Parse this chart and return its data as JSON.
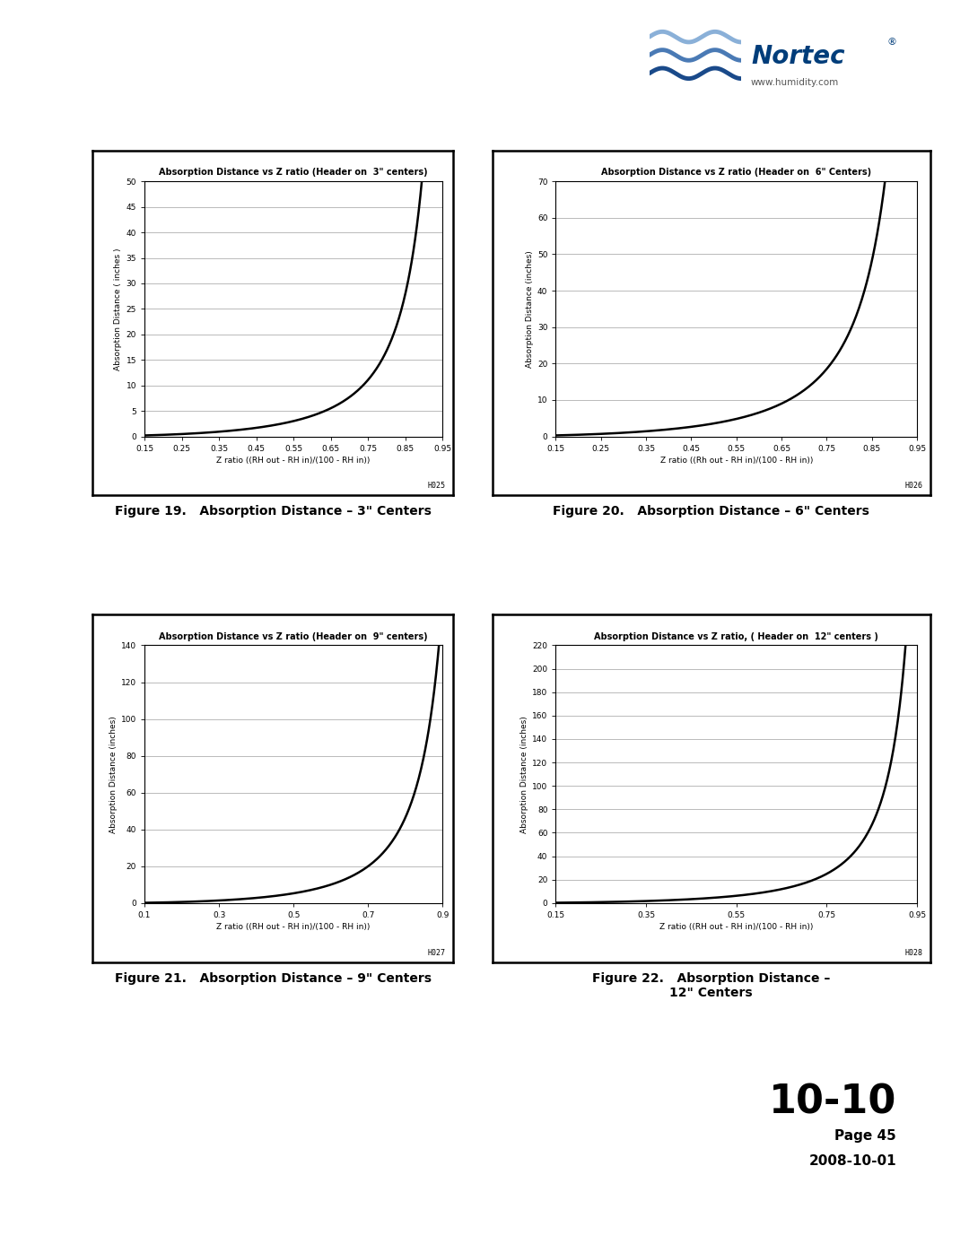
{
  "chart1": {
    "title": "Absorption Distance vs Z ratio (Header on  3\" centers)",
    "ylabel": "Absorption Distance ( inches )",
    "xlabel": "Z ratio ((RH out - RH in)/(100 - RH in))",
    "xlim": [
      0.15,
      0.95
    ],
    "ylim": [
      0,
      50
    ],
    "yticks": [
      0,
      5,
      10,
      15,
      20,
      25,
      30,
      35,
      40,
      45,
      50
    ],
    "xticks": [
      0.15,
      0.25,
      0.35,
      0.45,
      0.55,
      0.65,
      0.75,
      0.85,
      0.95
    ],
    "figure_label": "H025",
    "curve_k": 1.0,
    "curve_n": 6.5
  },
  "chart2": {
    "title": "Absorption Distance vs Z ratio (Header on  6\" Centers)",
    "ylabel": "Absorption Distance (inches)",
    "xlabel": "Z ratio ((Rh out - RH in)/(100 - RH in))",
    "xlim": [
      0.15,
      0.95
    ],
    "ylim": [
      0,
      70
    ],
    "yticks": [
      0,
      10,
      20,
      30,
      40,
      50,
      60,
      70
    ],
    "xticks": [
      0.15,
      0.25,
      0.35,
      0.45,
      0.55,
      0.65,
      0.75,
      0.85,
      0.95
    ],
    "figure_label": "H026",
    "curve_k": 2.0,
    "curve_n": 6.0
  },
  "chart3": {
    "title": "Absorption Distance vs Z ratio (Header on  9\" centers)",
    "ylabel": "Absorption Distance (inches)",
    "xlabel": "Z ratio ((RH out - RH in)/(100 - RH in))",
    "xlim": [
      0.1,
      0.9
    ],
    "ylim": [
      0,
      140
    ],
    "yticks": [
      0,
      20,
      40,
      60,
      80,
      100,
      120,
      140
    ],
    "xticks": [
      0.1,
      0.3,
      0.5,
      0.7,
      0.9
    ],
    "figure_label": "H027",
    "curve_k": 0.5,
    "curve_n": 7.0
  },
  "chart4": {
    "title": "Absorption Distance vs Z ratio, ( Header on  12\" centers )",
    "ylabel": "Absorption Distance (inches)",
    "xlabel": "Z ratio ((RH out - RH in)/(100 - RH in))",
    "xlim": [
      0.15,
      0.95
    ],
    "ylim": [
      0,
      220
    ],
    "yticks": [
      0,
      20,
      40,
      60,
      80,
      100,
      120,
      140,
      160,
      180,
      200,
      220
    ],
    "xticks": [
      0.15,
      0.35,
      0.55,
      0.75,
      0.95
    ],
    "figure_label": "H028",
    "curve_k": 1.0,
    "curve_n": 8.0
  },
  "fig19_caption": "Figure 19.   Absorption Distance – 3\" Centers",
  "fig20_caption": "Figure 20.   Absorption Distance – 6\" Centers",
  "fig21_caption": "Figure 21.   Absorption Distance – 9\" Centers",
  "fig22_caption": "Figure 22.   Absorption Distance –\n12\" Centers",
  "page_number": "10-10",
  "page_label": "Page 45",
  "date_label": "2008-10-01",
  "bg_color": "#ffffff",
  "line_color": "#000000",
  "grid_color": "#b0b0b0",
  "nortec_blue": "#1a4a8a",
  "nortec_text": "#003d7a"
}
